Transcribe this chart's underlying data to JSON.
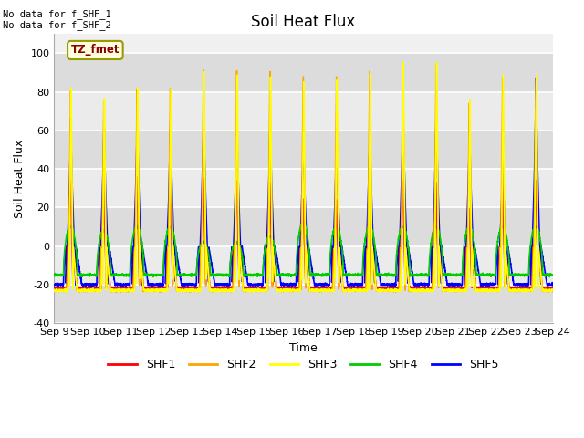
{
  "title": "Soil Heat Flux",
  "ylabel": "Soil Heat Flux",
  "xlabel": "Time",
  "ylim": [
    -40,
    110
  ],
  "yticks": [
    -40,
    -20,
    0,
    20,
    40,
    60,
    80,
    100
  ],
  "xtick_labels": [
    "Sep 9",
    "Sep 10",
    "Sep 11",
    "Sep 12",
    "Sep 13",
    "Sep 14",
    "Sep 15",
    "Sep 16",
    "Sep 17",
    "Sep 18",
    "Sep 19",
    "Sep 20",
    "Sep 21",
    "Sep 22",
    "Sep 23",
    "Sep 24"
  ],
  "annotation_text": "No data for f_SHF_1\nNo data for f_SHF_2",
  "box_label": "TZ_fmet",
  "colors": {
    "SHF1": "#FF0000",
    "SHF2": "#FFA500",
    "SHF3": "#FFFF00",
    "SHF4": "#00CC00",
    "SHF5": "#0000FF"
  },
  "legend_colors": [
    "#FF0000",
    "#FFA500",
    "#FFFF00",
    "#00CC00",
    "#0000FF"
  ],
  "legend_labels": [
    "SHF1",
    "SHF2",
    "SHF3",
    "SHF4",
    "SHF5"
  ],
  "plot_bg_color": "#F0F0F0",
  "band_colors": [
    "#DCDCDC",
    "#F0F0F0"
  ],
  "title_fontsize": 12,
  "label_fontsize": 9,
  "tick_fontsize": 8,
  "num_days": 15,
  "shf3_peaks": [
    83,
    78,
    84,
    83,
    93,
    92,
    91,
    88,
    88,
    91,
    96,
    96,
    76,
    89,
    89
  ],
  "shf5_peaks": [
    67,
    68,
    71,
    69,
    73,
    69,
    69,
    63,
    62,
    66,
    76,
    75,
    66,
    48,
    88
  ],
  "shf2_peaks": [
    83,
    78,
    84,
    83,
    93,
    92,
    91,
    88,
    88,
    91,
    96,
    96,
    76,
    89,
    89
  ],
  "shf1_peaks": [
    35,
    33,
    36,
    35,
    36,
    35,
    34,
    25,
    25,
    35,
    35,
    34,
    20,
    35,
    35
  ],
  "shf4_peaks": [
    10,
    8,
    10,
    10,
    2,
    2,
    5,
    12,
    10,
    10,
    10,
    10,
    10,
    10,
    10
  ]
}
